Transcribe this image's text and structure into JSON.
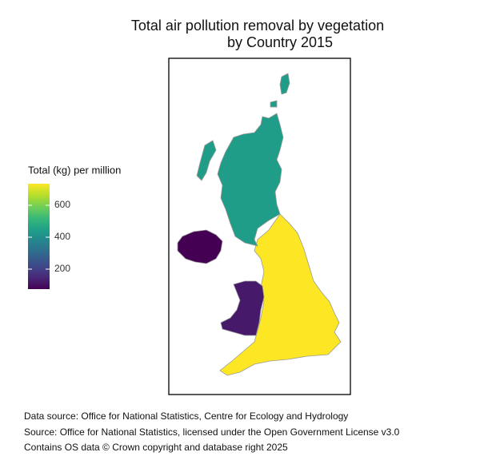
{
  "chart_data": {
    "type": "choropleth",
    "title": [
      "Total air pollution removal by vegetation",
      "by Country 2015"
    ],
    "legend_title": "Total (kg) per million",
    "colormap": "viridis",
    "colorlim": [
      75,
      735
    ],
    "colorticks": [
      200,
      400,
      600
    ],
    "values": [
      735,
      440,
      120,
      75
    ],
    "captions": [
      "Data source: Office for National Statistics, Centre for Ecology and Hydrology",
      "Source: Office for National Statistics, licensed under the Open Government License v3.0",
      "Contains OS data © Crown copyright and database right 2025"
    ]
  }
}
